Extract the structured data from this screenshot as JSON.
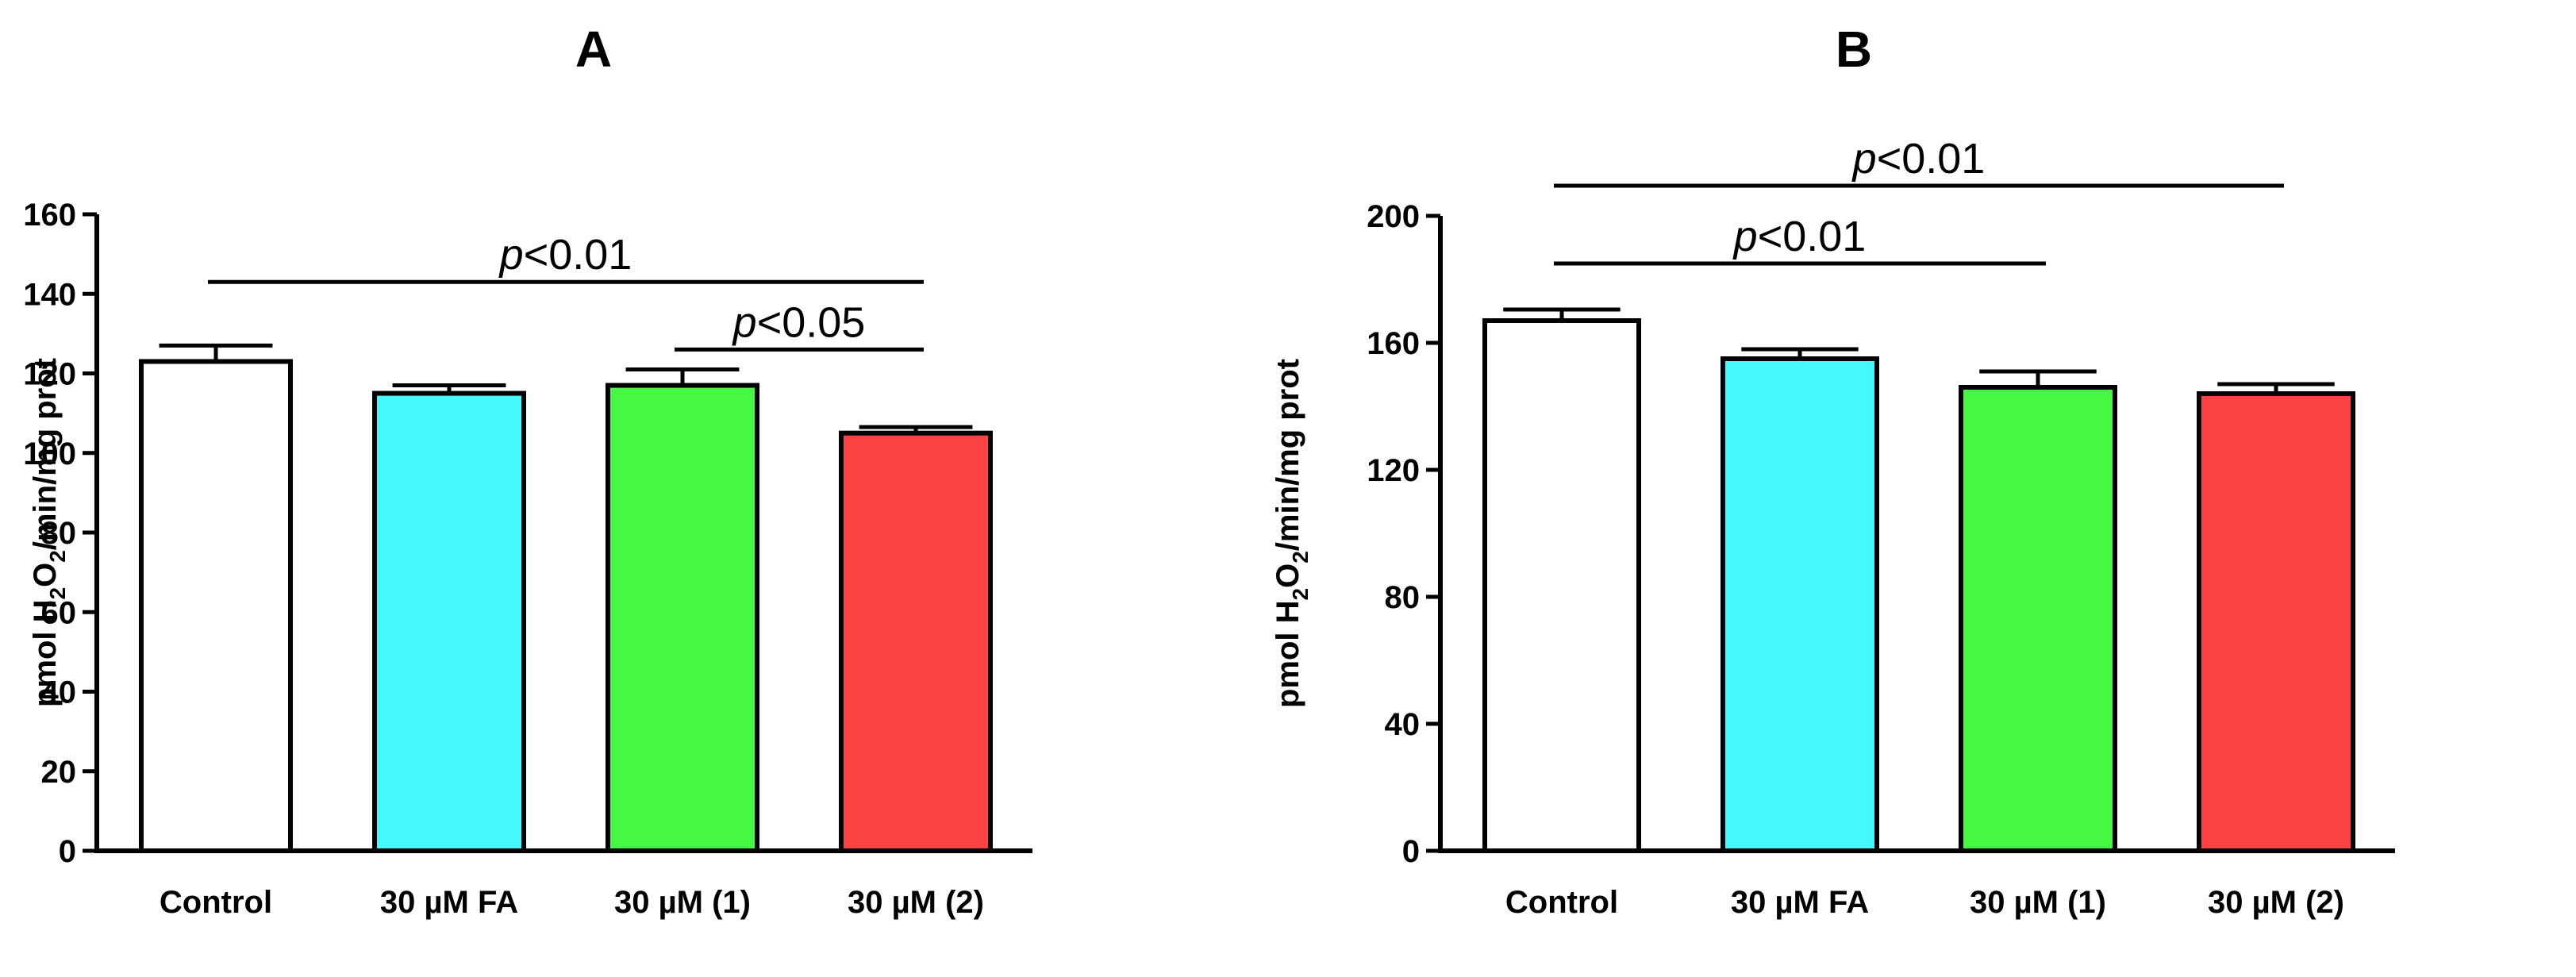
{
  "chart_data": [
    {
      "type": "bar",
      "title": "A",
      "ylabel": "pmol H2O2/min/mg prot",
      "ylabel_parts": [
        "pmol H",
        "2",
        "O",
        "2",
        "/min/mg prot"
      ],
      "ylim": [
        0,
        160
      ],
      "yticks": [
        0,
        20,
        40,
        60,
        80,
        100,
        120,
        140,
        160
      ],
      "categories": [
        "Control",
        "30 µM FA",
        "30 µM (1)",
        "30 µM (2)"
      ],
      "values": [
        123,
        115,
        117,
        105
      ],
      "errors": [
        4,
        2,
        4,
        1.5
      ],
      "colors": [
        "#ffffff",
        "#44f8fc",
        "#44f844",
        "#fc4242"
      ],
      "significance": [
        {
          "from": 0,
          "to": 3,
          "label_p": "p",
          "label_rest": "<0.01",
          "y": 143
        },
        {
          "from": 2,
          "to": 3,
          "label_p": "p",
          "label_rest": "<0.05",
          "y": 126
        }
      ]
    },
    {
      "type": "bar",
      "title": "B",
      "ylabel": "pmol H2O2/min/mg prot",
      "ylabel_parts": [
        "pmol H",
        "2",
        "O",
        "2",
        "/min/mg prot"
      ],
      "ylim": [
        0,
        200
      ],
      "yticks": [
        0,
        40,
        80,
        120,
        160,
        200
      ],
      "categories": [
        "Control",
        "30 µM FA",
        "30 µM (1)",
        "30 µM (2)"
      ],
      "values": [
        167,
        155,
        146,
        144
      ],
      "errors": [
        3.5,
        3,
        5,
        3
      ],
      "colors": [
        "#ffffff",
        "#44f8fc",
        "#44f844",
        "#fc4242"
      ],
      "significance": [
        {
          "from": 0,
          "to": 3,
          "label_p": "p",
          "label_rest": "<0.01",
          "y": 209.5
        },
        {
          "from": 0,
          "to": 2,
          "label_p": "p",
          "label_rest": "<0.01",
          "y": 185
        }
      ]
    }
  ]
}
